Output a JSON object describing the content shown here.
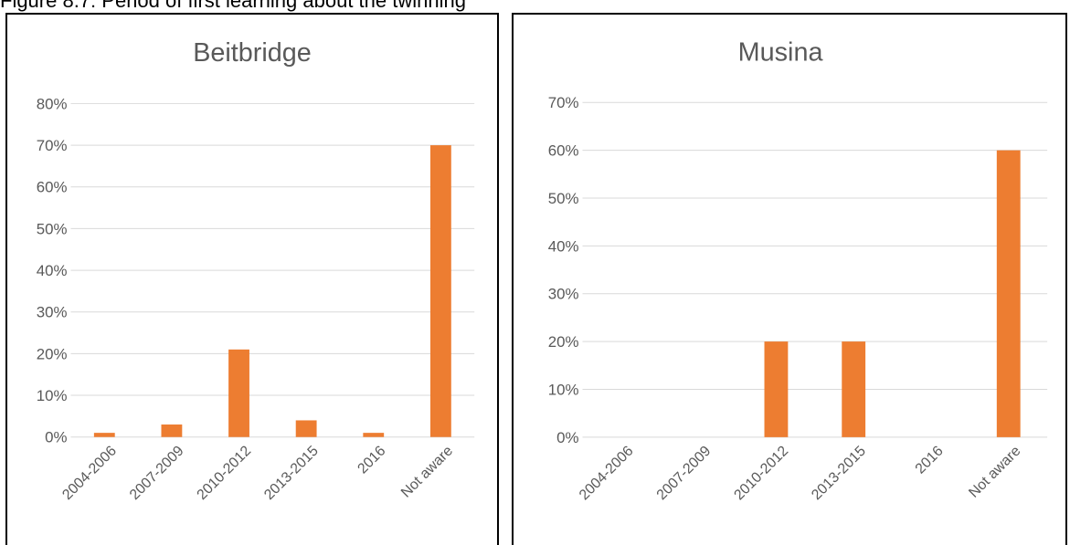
{
  "figure": {
    "caption": "Figure 8.7: Period of first learning about the twinning"
  },
  "colors": {
    "bar": "#ed7d31",
    "grid": "#d9d9d9",
    "text": "#595959"
  },
  "chart_data": [
    {
      "type": "bar",
      "title": "Beitbridge",
      "categories": [
        "2004-2006",
        "2007-2009",
        "2010-2012",
        "2013-2015",
        "2016",
        "Not aware"
      ],
      "values": [
        1,
        3,
        21,
        4,
        1,
        70
      ],
      "ylim": [
        0,
        80
      ],
      "yticks": [
        "0%",
        "10%",
        "20%",
        "30%",
        "40%",
        "50%",
        "60%",
        "70%",
        "80%"
      ],
      "grid": true,
      "legend": "none"
    },
    {
      "type": "bar",
      "title": "Musina",
      "categories": [
        "2004-2006",
        "2007-2009",
        "2010-2012",
        "2013-2015",
        "2016",
        "Not aware"
      ],
      "values": [
        0,
        0,
        20,
        20,
        0,
        60
      ],
      "ylim": [
        0,
        70
      ],
      "yticks": [
        "0%",
        "10%",
        "20%",
        "30%",
        "40%",
        "50%",
        "60%",
        "70%"
      ],
      "grid": true,
      "legend": "none"
    }
  ]
}
